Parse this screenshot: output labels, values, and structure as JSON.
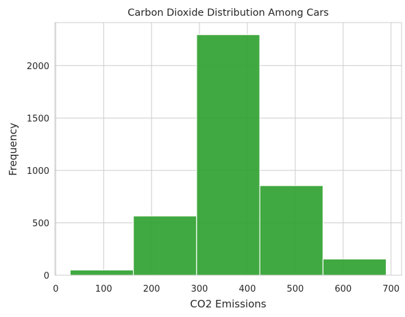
{
  "chart_data": {
    "type": "bar",
    "subtype": "histogram",
    "title": "Carbon Dioxide Distribution Among Cars",
    "xlabel": "CO2 Emissions",
    "ylabel": "Frequency",
    "bins": [
      {
        "start": 30,
        "end": 162,
        "count": 50
      },
      {
        "start": 162,
        "end": 294,
        "count": 565
      },
      {
        "start": 294,
        "end": 426,
        "count": 2295
      },
      {
        "start": 426,
        "end": 558,
        "count": 855
      },
      {
        "start": 558,
        "end": 690,
        "count": 155
      }
    ],
    "xlim": [
      -2,
      722
    ],
    "ylim": [
      0,
      2410
    ],
    "xticks": [
      0,
      100,
      200,
      300,
      400,
      500,
      600,
      700
    ],
    "yticks": [
      0,
      500,
      1000,
      1500,
      2000
    ],
    "grid": true,
    "bar_color": "#2ca02c"
  }
}
